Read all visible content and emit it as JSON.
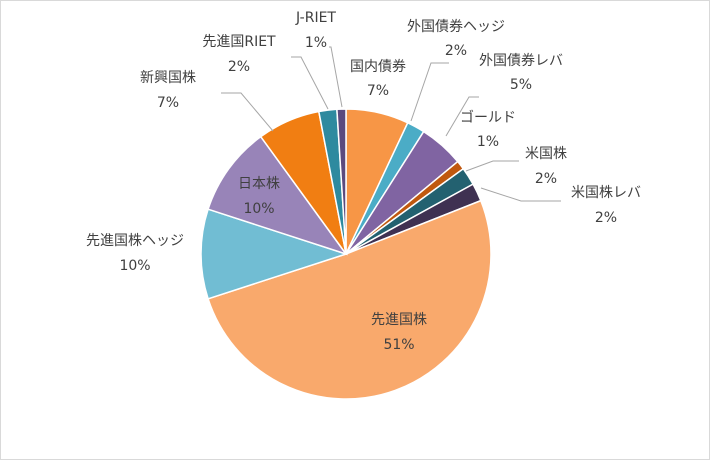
{
  "chart_data": {
    "type": "pie",
    "title": "",
    "slices": [
      {
        "label": "国内債券",
        "value": 7,
        "pct_label": "7%",
        "color": "#f79646"
      },
      {
        "label": "外国債券ヘッジ",
        "value": 2,
        "pct_label": "2%",
        "color": "#4bacc6"
      },
      {
        "label": "外国債券レバ",
        "value": 5,
        "pct_label": "5%",
        "color": "#8064a2"
      },
      {
        "label": "ゴールド",
        "value": 1,
        "pct_label": "1%",
        "color": "#c0580f"
      },
      {
        "label": "米国株",
        "value": 2,
        "pct_label": "2%",
        "color": "#236170"
      },
      {
        "label": "米国株レバ",
        "value": 2,
        "pct_label": "2%",
        "color": "#3f3152"
      },
      {
        "label": "先進国株",
        "value": 51,
        "pct_label": "51%",
        "color": "#f9a96c"
      },
      {
        "label": "先進国株ヘッジ",
        "value": 10,
        "pct_label": "10%",
        "color": "#71bdd3"
      },
      {
        "label": "日本株",
        "value": 10,
        "pct_label": "10%",
        "color": "#9884b8"
      },
      {
        "label": "新興国株",
        "value": 7,
        "pct_label": "7%",
        "color": "#f17e12"
      },
      {
        "label": "先進国RIET",
        "value": 2,
        "pct_label": "2%",
        "color": "#2e8a9f"
      },
      {
        "label": "J-RIET",
        "value": 1,
        "pct_label": "1%",
        "color": "#5c4a7e"
      }
    ]
  }
}
